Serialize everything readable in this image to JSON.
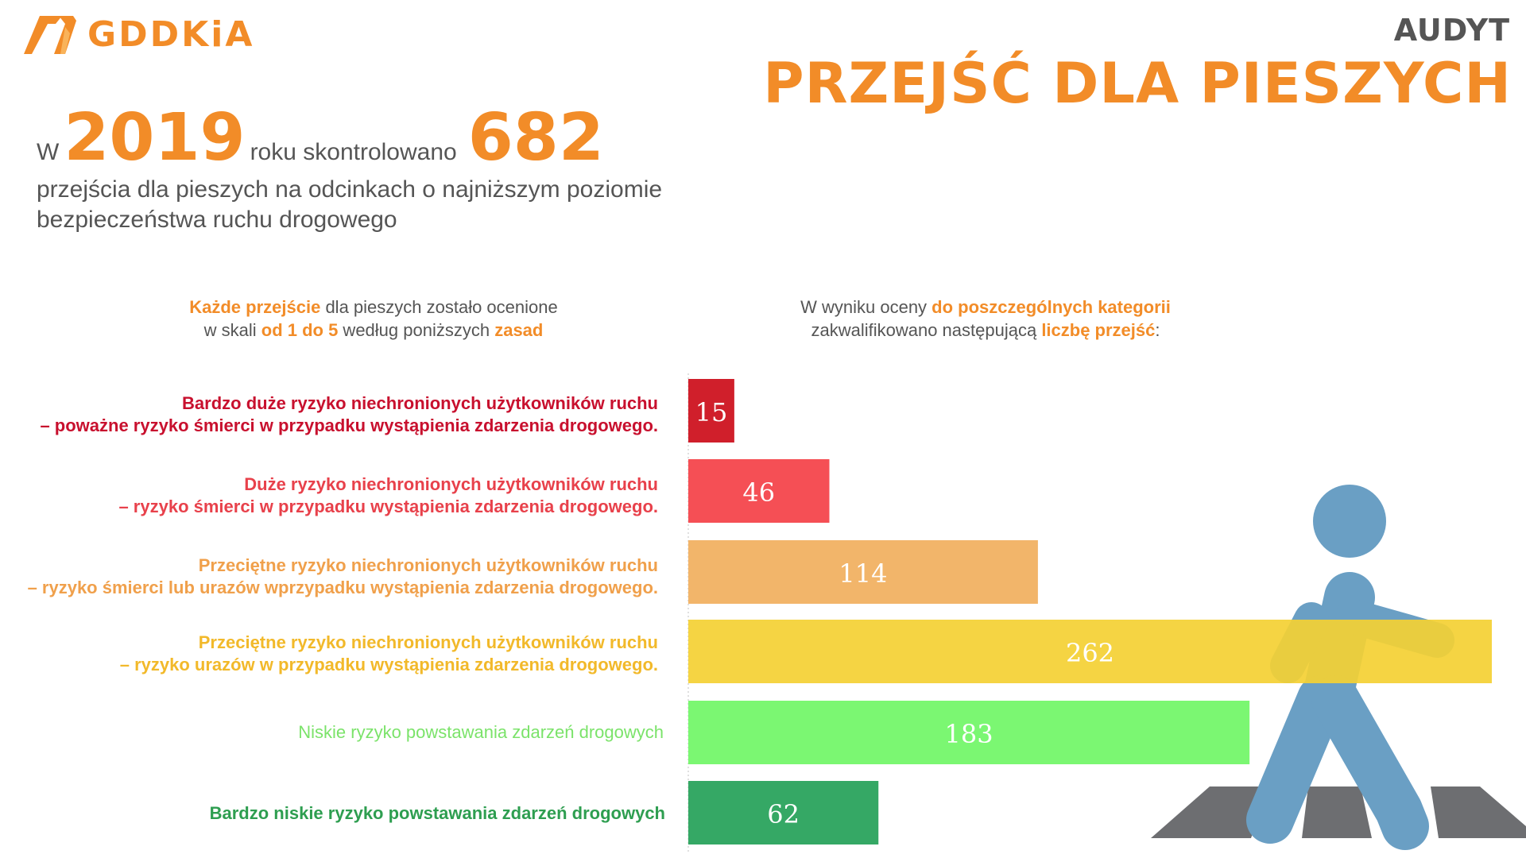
{
  "header": {
    "brand": "GDDKiA",
    "title_small": "AUDYT",
    "title_big": "PRZEJŚĆ DLA PIESZYCH"
  },
  "intro": {
    "w": "W",
    "year": "2019",
    "middle": "roku skontrolowano",
    "count": "682",
    "rest": "przejścia dla pieszych na odcinkach o najniższym poziomie bezpieczeństwa ruchu drogowego"
  },
  "caption_left": {
    "p1": "Każde przejście",
    "p2": " dla pieszych zostało ocenione",
    "p3": "w skali ",
    "p4": "od 1 do 5",
    "p5": " według poniższych ",
    "p6": "zasad"
  },
  "caption_right": {
    "p1": "W wyniku oceny ",
    "p2": "do poszczególnych kategorii",
    "p3": "zakwalifikowano następującą ",
    "p4": "liczbę przejść",
    "p5": ":"
  },
  "categories": [
    {
      "line1": "Bardzo duże ryzyko niechronionych użytkowników ruchu",
      "line2": "– poważne ryzyko śmierci w przypadku wystąpienia zdarzenia drogowego.",
      "color": "#c8102e"
    },
    {
      "line1": "Duże ryzyko niechronionych użytkowników ruchu",
      "line2": "– ryzyko śmierci w przypadku wystąpienia zdarzenia drogowego.",
      "color": "#e8414b"
    },
    {
      "line1": "Przeciętne ryzyko niechronionych użytkowników ruchu",
      "line2": "– ryzyko śmierci lub urazów wprzypadku wystąpienia zdarzenia drogowego.",
      "color": "#f0a04b"
    },
    {
      "line1": "Przeciętne ryzyko niechronionych użytkowników ruchu",
      "line2": "– ryzyko urazów w przypadku wystąpienia zdarzenia drogowego.",
      "color": "#f2b92a"
    },
    {
      "line1": "Niskie ryzyko powstawania zdarzeń drogowych",
      "line2": "",
      "color": "#7be36a"
    },
    {
      "line1": "Bardzo niskie ryzyko powstawania zdarzeń drogowych",
      "line2": "",
      "color": "#2e9e50"
    }
  ],
  "chart_data": {
    "type": "bar",
    "orientation": "horizontal",
    "categories": [
      "Bardzo duże ryzyko niechronionych użytkowników ruchu",
      "Duże ryzyko niechronionych użytkowników ruchu",
      "Przeciętne ryzyko niechronionych użytkowników ruchu – ryzyko śmierci lub urazów",
      "Przeciętne ryzyko niechronionych użytkowników ruchu – ryzyko urazów",
      "Niskie ryzyko powstawania zdarzeń drogowych",
      "Bardzo niskie ryzyko powstawania zdarzeń drogowych"
    ],
    "values": [
      15,
      46,
      114,
      262,
      183,
      62
    ],
    "colors": [
      "#d01f2b",
      "#f54f55",
      "#f2b56a",
      "#f4d033",
      "#7bf772",
      "#35a865"
    ],
    "title": "",
    "xlabel": "",
    "ylabel": "",
    "xlim": [
      0,
      262
    ],
    "grid": false,
    "legend": "none",
    "data_labels": true
  }
}
